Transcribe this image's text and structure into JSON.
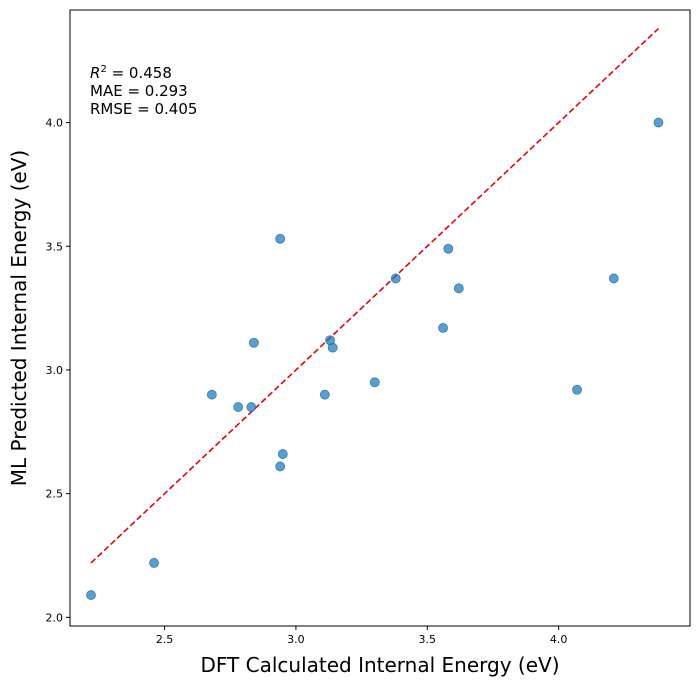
{
  "chart_data": {
    "type": "scatter",
    "xlabel": "DFT Calculated Internal Energy (eV)",
    "ylabel": "ML Predicted Internal Energy (eV)",
    "xlim": [
      2.14,
      4.5
    ],
    "ylim": [
      1.965,
      4.455
    ],
    "xticks": [
      "2.5",
      "3.0",
      "3.5",
      "4.0"
    ],
    "yticks": [
      "2.0",
      "2.5",
      "3.0",
      "3.5",
      "4.0"
    ],
    "points": [
      {
        "x": 2.22,
        "y": 2.09
      },
      {
        "x": 2.46,
        "y": 2.22
      },
      {
        "x": 2.68,
        "y": 2.9
      },
      {
        "x": 2.78,
        "y": 2.85
      },
      {
        "x": 2.83,
        "y": 2.85
      },
      {
        "x": 2.84,
        "y": 3.11
      },
      {
        "x": 2.94,
        "y": 2.61
      },
      {
        "x": 2.94,
        "y": 3.53
      },
      {
        "x": 2.95,
        "y": 2.66
      },
      {
        "x": 3.11,
        "y": 2.9
      },
      {
        "x": 3.13,
        "y": 3.12
      },
      {
        "x": 3.14,
        "y": 3.09
      },
      {
        "x": 3.3,
        "y": 2.95
      },
      {
        "x": 3.38,
        "y": 3.37
      },
      {
        "x": 3.56,
        "y": 3.17
      },
      {
        "x": 3.58,
        "y": 3.49
      },
      {
        "x": 3.62,
        "y": 3.33
      },
      {
        "x": 4.07,
        "y": 2.92
      },
      {
        "x": 4.21,
        "y": 3.37
      },
      {
        "x": 4.38,
        "y": 4.0
      }
    ],
    "reference_line": {
      "x": [
        2.22,
        4.38
      ],
      "y": [
        2.22,
        4.38
      ],
      "color": "#e8000b",
      "style": "dashed"
    },
    "point_color": "#1f77b4",
    "grid": false,
    "annotations": {
      "r2_label": "R",
      "r2_sup": "2",
      "r2_value": " = 0.458",
      "mae": "MAE = 0.293",
      "rmse": "RMSE = 0.405"
    }
  }
}
